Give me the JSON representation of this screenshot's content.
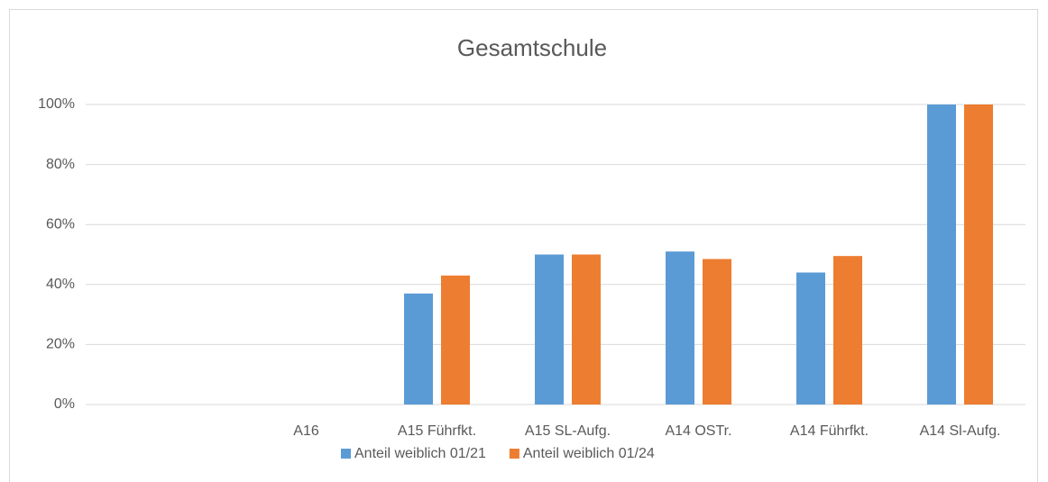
{
  "chart_data": {
    "type": "bar",
    "title": "Gesamtschule",
    "categories": [
      null,
      "A16",
      "A15 Führfkt.",
      "A15 SL-Aufg.",
      "A14 OSTr.",
      "A14 Führfkt.",
      "A14 Sl-Aufg."
    ],
    "series": [
      {
        "name": "Anteil weiblich 01/21",
        "color": "#5b9bd5",
        "values": [
          null,
          0,
          37,
          50,
          51,
          44,
          100
        ]
      },
      {
        "name": "Anteil weiblich 01/24",
        "color": "#ed7d31",
        "values": [
          null,
          0,
          43,
          50,
          48.5,
          49.5,
          100
        ]
      }
    ],
    "ylim": [
      0,
      100
    ],
    "yticks": [
      {
        "value": 0,
        "label": "0%"
      },
      {
        "value": 20,
        "label": "20%"
      },
      {
        "value": 40,
        "label": "40%"
      },
      {
        "value": 60,
        "label": "60%"
      },
      {
        "value": 80,
        "label": "80%"
      },
      {
        "value": 100,
        "label": "100%"
      }
    ],
    "grid": true,
    "legend": "bottom"
  }
}
